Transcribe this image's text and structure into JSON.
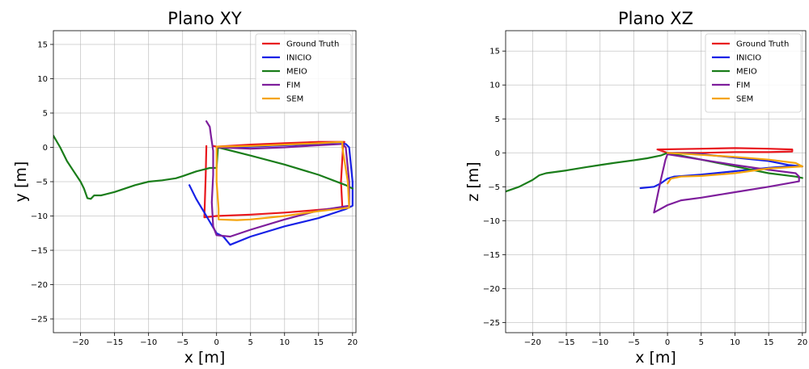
{
  "chart_data": [
    {
      "type": "line",
      "title": "Plano XY",
      "xlabel": "x [m]",
      "ylabel": "y [m]",
      "xlim": [
        -24,
        20.5
      ],
      "ylim": [
        -27,
        17
      ],
      "xticks": [
        -20,
        -15,
        -10,
        -5,
        0,
        5,
        10,
        15,
        20
      ],
      "yticks": [
        -25,
        -20,
        -15,
        -10,
        -5,
        0,
        5,
        10,
        15
      ],
      "grid": true,
      "legend": "top-right",
      "series": [
        {
          "name": "Ground Truth",
          "color": "#e8171d",
          "points": [
            [
              -1.5,
              0.2
            ],
            [
              -1.6,
              -4
            ],
            [
              -1.8,
              -10.2
            ],
            [
              0,
              -10
            ],
            [
              5,
              -9.8
            ],
            [
              10,
              -9.5
            ],
            [
              15,
              -9.1
            ],
            [
              18.5,
              -8.8
            ],
            [
              18.3,
              -5
            ],
            [
              18.6,
              0
            ],
            [
              18.8,
              0.8
            ],
            [
              15,
              0.8
            ],
            [
              10,
              0.6
            ],
            [
              5,
              0.4
            ],
            [
              0,
              0.1
            ],
            [
              -0.5,
              0.2
            ]
          ]
        },
        {
          "name": "INICIO",
          "color": "#1721e6",
          "points": [
            [
              -4,
              -5.5
            ],
            [
              -3,
              -7.5
            ],
            [
              -1.5,
              -10
            ],
            [
              0,
              -12.5
            ],
            [
              1,
              -13
            ],
            [
              2,
              -14.2
            ],
            [
              5,
              -13
            ],
            [
              10,
              -11.5
            ],
            [
              15,
              -10.3
            ],
            [
              19,
              -9
            ],
            [
              20,
              -8.5
            ],
            [
              20,
              -5
            ],
            [
              19.5,
              0
            ],
            [
              19,
              0.5
            ],
            [
              15,
              0.5
            ],
            [
              10,
              0.3
            ],
            [
              5,
              0.1
            ],
            [
              0,
              0
            ]
          ]
        },
        {
          "name": "MEIO",
          "color": "#1a7d1a",
          "points": [
            [
              -24,
              1.7
            ],
            [
              -23,
              0
            ],
            [
              -22,
              -2
            ],
            [
              -21,
              -3.5
            ],
            [
              -20,
              -5
            ],
            [
              -19.5,
              -6
            ],
            [
              -19,
              -7.4
            ],
            [
              -18.5,
              -7.5
            ],
            [
              -18,
              -7
            ],
            [
              -17,
              -7
            ],
            [
              -15,
              -6.5
            ],
            [
              -12,
              -5.5
            ],
            [
              -10,
              -5
            ],
            [
              -8,
              -4.8
            ],
            [
              -6,
              -4.5
            ],
            [
              -5,
              -4.2
            ],
            [
              -3,
              -3.5
            ],
            [
              -1,
              -3
            ],
            [
              0,
              -3
            ],
            [
              0.2,
              0
            ],
            [
              5,
              -1.2
            ],
            [
              10,
              -2.5
            ],
            [
              15,
              -4
            ],
            [
              19,
              -5.5
            ],
            [
              20,
              -6
            ]
          ]
        },
        {
          "name": "FIM",
          "color": "#7e1e9c",
          "points": [
            [
              -1.5,
              3.8
            ],
            [
              -1,
              3
            ],
            [
              -0.8,
              1.5
            ],
            [
              -0.5,
              -0.5
            ],
            [
              -0.5,
              -4
            ],
            [
              -0.7,
              -8
            ],
            [
              -0.5,
              -11.5
            ],
            [
              0,
              -12.8
            ],
            [
              2,
              -13
            ],
            [
              5,
              -12
            ],
            [
              10,
              -10.5
            ],
            [
              15,
              -9.2
            ],
            [
              19.5,
              -8.5
            ],
            [
              19.5,
              -5
            ],
            [
              19,
              0
            ],
            [
              18.5,
              0.5
            ],
            [
              15,
              0.3
            ],
            [
              10,
              0
            ],
            [
              5,
              -0.2
            ],
            [
              0,
              0
            ]
          ]
        },
        {
          "name": "SEM",
          "color": "#f5a40c",
          "points": [
            [
              0,
              0
            ],
            [
              0,
              -5
            ],
            [
              0.3,
              -9
            ],
            [
              0.3,
              -10.5
            ],
            [
              3,
              -10.6
            ],
            [
              5,
              -10.5
            ],
            [
              10,
              -10
            ],
            [
              15,
              -9.3
            ],
            [
              19.5,
              -8.8
            ],
            [
              19.3,
              -5
            ],
            [
              18.5,
              0
            ],
            [
              18.5,
              0.8
            ],
            [
              15,
              0.6
            ],
            [
              10,
              0.4
            ],
            [
              5,
              0.2
            ],
            [
              0,
              0.1
            ]
          ]
        }
      ]
    },
    {
      "type": "line",
      "title": "Plano XZ",
      "xlabel": "x [m]",
      "ylabel": "z [m]",
      "xlim": [
        -24,
        20.5
      ],
      "ylim": [
        -26.5,
        18
      ],
      "xticks": [
        -20,
        -15,
        -10,
        -5,
        0,
        5,
        10,
        15,
        20
      ],
      "yticks": [
        -25,
        -20,
        -15,
        -10,
        -5,
        0,
        5,
        10,
        15
      ],
      "grid": true,
      "legend": "top-right",
      "series": [
        {
          "name": "Ground Truth",
          "color": "#e8171d",
          "points": [
            [
              -1.5,
              0.5
            ],
            [
              5,
              0.6
            ],
            [
              10,
              0.7
            ],
            [
              15,
              0.6
            ],
            [
              18.5,
              0.5
            ],
            [
              18.5,
              0.2
            ],
            [
              15,
              0.1
            ],
            [
              10,
              0.1
            ],
            [
              5,
              0
            ],
            [
              0,
              0
            ],
            [
              -1.5,
              0.5
            ]
          ]
        },
        {
          "name": "INICIO",
          "color": "#1721e6",
          "points": [
            [
              -4,
              -5.2
            ],
            [
              -2,
              -5
            ],
            [
              -1,
              -4.5
            ],
            [
              0,
              -3.8
            ],
            [
              1,
              -3.5
            ],
            [
              5,
              -3.2
            ],
            [
              10,
              -2.7
            ],
            [
              15,
              -2.2
            ],
            [
              19,
              -1.9
            ],
            [
              20,
              -2
            ],
            [
              18,
              -1.8
            ],
            [
              15,
              -1.2
            ],
            [
              10,
              -0.7
            ],
            [
              5,
              -0.2
            ],
            [
              0,
              0
            ]
          ]
        },
        {
          "name": "MEIO",
          "color": "#1a7d1a",
          "points": [
            [
              -24,
              -5.7
            ],
            [
              -22,
              -5
            ],
            [
              -20,
              -4
            ],
            [
              -19,
              -3.3
            ],
            [
              -18,
              -3
            ],
            [
              -15,
              -2.6
            ],
            [
              -12,
              -2.1
            ],
            [
              -10,
              -1.8
            ],
            [
              -8,
              -1.5
            ],
            [
              -5,
              -1.1
            ],
            [
              -3,
              -0.8
            ],
            [
              -1,
              -0.4
            ],
            [
              0,
              0
            ],
            [
              5,
              -1
            ],
            [
              10,
              -2
            ],
            [
              15,
              -3
            ],
            [
              19,
              -3.5
            ],
            [
              20,
              -3.7
            ]
          ]
        },
        {
          "name": "FIM",
          "color": "#7e1e9c",
          "points": [
            [
              -2,
              -8.8
            ],
            [
              0,
              -7.7
            ],
            [
              2,
              -7
            ],
            [
              5,
              -6.6
            ],
            [
              10,
              -5.8
            ],
            [
              15,
              -5
            ],
            [
              19.5,
              -4.2
            ],
            [
              19.5,
              -3.5
            ],
            [
              19,
              -3
            ],
            [
              15,
              -2.5
            ],
            [
              10,
              -1.8
            ],
            [
              5,
              -1
            ],
            [
              0,
              -0.2
            ],
            [
              -0.3,
              -1
            ],
            [
              -1,
              -4
            ],
            [
              -2,
              -8.8
            ]
          ]
        },
        {
          "name": "SEM",
          "color": "#f5a40c",
          "points": [
            [
              0,
              -4.5
            ],
            [
              0.5,
              -3.8
            ],
            [
              2,
              -3.5
            ],
            [
              5,
              -3.4
            ],
            [
              10,
              -3
            ],
            [
              15,
              -2.3
            ],
            [
              20,
              -2
            ],
            [
              19,
              -1.5
            ],
            [
              15,
              -1
            ],
            [
              10,
              -0.6
            ],
            [
              5,
              -0.3
            ],
            [
              0,
              0
            ]
          ]
        }
      ]
    }
  ]
}
